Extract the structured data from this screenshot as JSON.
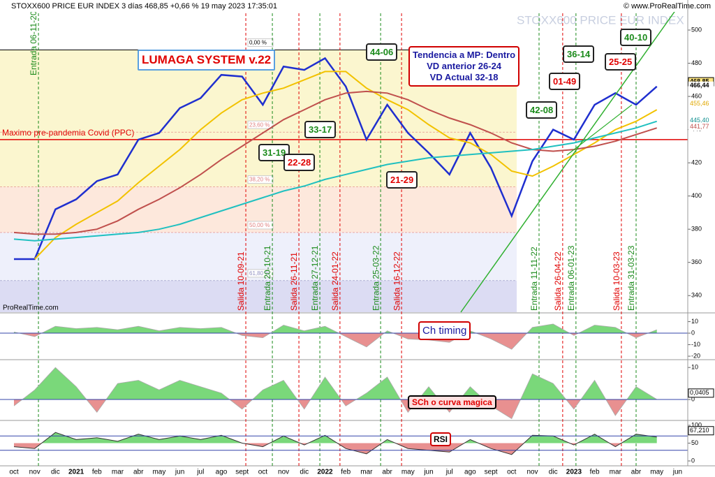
{
  "header": {
    "title": "STOXX600 PRICE EUR INDEX 3 días 468,85 +0,66 % 19 may 2023 17:35:01",
    "copyright": "© www.ProRealTime.com",
    "watermark": "STOXX600 PRICE EUR INDEX",
    "source": "ProRealTime.com"
  },
  "annotations": {
    "system": "LUMAGA SYSTEM v.22",
    "trend": [
      "Tendencia a MP: Dentro",
      "VD anterior 26-24",
      "VD Actual 32-18"
    ],
    "scores": [
      "31-19",
      "22-28",
      "33-17",
      "44-06",
      "21-29",
      "42-08",
      "01-49",
      "36-14",
      "25-25",
      "40-10"
    ]
  },
  "chart_data": [
    {
      "type": "line",
      "categories": [
        "oct",
        "nov",
        "dic",
        "2021",
        "feb",
        "mar",
        "abr",
        "may",
        "jun",
        "jul",
        "ago",
        "sept",
        "oct",
        "nov",
        "dic",
        "2022",
        "feb",
        "mar",
        "abr",
        "may",
        "jun",
        "jul",
        "ago",
        "sept",
        "oct",
        "nov",
        "dic",
        "2023",
        "feb",
        "mar",
        "abr",
        "may",
        "jun"
      ],
      "series": [
        {
          "color": "#1f2fcf",
          "values": [
            362,
            362,
            392,
            398,
            409,
            413,
            434,
            438,
            453,
            459,
            473,
            472,
            455,
            478,
            476,
            483,
            466,
            434,
            455,
            438,
            426,
            413,
            438,
            417,
            388,
            421,
            440,
            434,
            455,
            462,
            455,
            466,
            null
          ]
        },
        {
          "color": "#f2c200",
          "values": [
            null,
            362,
            375,
            383,
            390,
            397,
            408,
            418,
            428,
            440,
            450,
            458,
            462,
            465,
            470,
            475,
            475,
            465,
            458,
            452,
            443,
            435,
            432,
            425,
            415,
            412,
            418,
            425,
            432,
            440,
            445,
            452,
            null
          ]
        },
        {
          "color": "#c0504d",
          "values": [
            378,
            377,
            377,
            378,
            380,
            385,
            392,
            398,
            405,
            413,
            422,
            430,
            438,
            446,
            452,
            458,
            462,
            463,
            462,
            458,
            452,
            447,
            443,
            438,
            432,
            428,
            427,
            428,
            430,
            433,
            437,
            441,
            null
          ]
        },
        {
          "color": "#20c0c0",
          "values": [
            374,
            373,
            374,
            375,
            376,
            377,
            378,
            380,
            383,
            387,
            391,
            395,
            399,
            403,
            406,
            410,
            413,
            416,
            419,
            421,
            423,
            424,
            425,
            426,
            427,
            428,
            430,
            432,
            435,
            438,
            441,
            445,
            null
          ]
        }
      ],
      "ylim": [
        330,
        516
      ],
      "yticks": [
        340,
        360,
        380,
        400,
        420,
        440,
        460,
        480,
        500
      ],
      "levels": [
        {
          "label": "Maximo pre-pandemia Covid (PPC)",
          "value": 434,
          "color": "#e00000"
        },
        {
          "label": "0,00 %",
          "value": 488,
          "color": "#000000"
        },
        {
          "label": "23,60 %",
          "value": 438.5,
          "color": "#e08080"
        },
        {
          "label": "38,20 %",
          "value": 405.5,
          "color": "#e08080"
        },
        {
          "label": "50,00 %",
          "value": 378,
          "color": "#e08080"
        },
        {
          "label": "61,80 %",
          "value": 349,
          "color": "#9090c0"
        }
      ],
      "price_labels": [
        {
          "value": 468.85,
          "label": "468,85",
          "color": "#000000"
        },
        {
          "value": 466.44,
          "label": "466,44",
          "color": "#000000"
        },
        {
          "value": 455.46,
          "label": "455,46",
          "color": "#e0a800"
        },
        {
          "value": 445.4,
          "label": "445,40",
          "color": "#109090"
        },
        {
          "value": 441.77,
          "label": "441,77",
          "color": "#c0504d"
        }
      ],
      "signals": [
        {
          "label": "Entrada 06-11-20",
          "x": 1.18,
          "color": "#1a8a1a"
        },
        {
          "label": "Salida 10-09-21",
          "x": 11.18,
          "color": "#e00000"
        },
        {
          "label": "Entrada 20-10-21",
          "x": 12.46,
          "color": "#1a8a1a"
        },
        {
          "label": "Salida 26-11-21",
          "x": 13.74,
          "color": "#e00000"
        },
        {
          "label": "Entrada 27-12-21",
          "x": 14.75,
          "color": "#1a8a1a"
        },
        {
          "label": "Salida 24-01-22",
          "x": 15.72,
          "color": "#e00000"
        },
        {
          "label": "Entrada 25-03-22",
          "x": 17.68,
          "color": "#1a8a1a"
        },
        {
          "label": "Salida 16-12-22",
          "x": 18.69,
          "color": "#e00000"
        },
        {
          "label": "Entrada 11-11-22",
          "x": 25.32,
          "color": "#1a8a1a"
        },
        {
          "label": "Salida 26-04-22",
          "x": 26.46,
          "color": "#e00000"
        },
        {
          "label": "Entrada 06-01-23",
          "x": 27.1,
          "color": "#1a8a1a"
        },
        {
          "label": "Salida 10-03-23",
          "x": 29.29,
          "color": "#e00000"
        },
        {
          "label": "Entrada 31-03-23",
          "x": 30.0,
          "color": "#1a8a1a"
        }
      ]
    },
    {
      "type": "area",
      "title": "Ch timing",
      "values": [
        1,
        -3,
        6,
        4,
        5,
        3,
        6,
        2,
        5,
        4,
        5,
        -2,
        -4,
        7,
        2,
        6,
        -3,
        -12,
        2,
        -5,
        -6,
        -8,
        2,
        -5,
        -14,
        5,
        8,
        -2,
        7,
        5,
        -4,
        3,
        null
      ],
      "ylim": [
        -21.8,
        16.4
      ],
      "yticks": [
        10,
        0,
        -10,
        -20
      ],
      "up": "#7ad87a",
      "down": "#e89090"
    },
    {
      "type": "area",
      "title": "SCh o curva magica",
      "values": [
        -2,
        3,
        10,
        4,
        -4,
        5,
        6,
        3,
        6,
        4,
        2,
        -3,
        3,
        6,
        -3,
        7,
        -2,
        2,
        7,
        -4,
        4,
        -4,
        4,
        -2,
        -6,
        8,
        5,
        -3,
        6,
        -5,
        4,
        0.0405,
        null
      ],
      "ylim": [
        -6.1,
        12
      ],
      "yticks": [
        10,
        0
      ],
      "last_label": {
        "value": 0.0405,
        "label": "0,0405"
      },
      "up": "#7ad87a",
      "down": "#e89090"
    },
    {
      "type": "line",
      "title": "RSI",
      "values": [
        40,
        35,
        80,
        60,
        65,
        55,
        75,
        60,
        70,
        60,
        72,
        50,
        40,
        70,
        45,
        72,
        35,
        20,
        60,
        35,
        30,
        25,
        60,
        35,
        18,
        72,
        70,
        45,
        75,
        40,
        75,
        67.21,
        null
      ],
      "ylim": [
        -9.8,
        109.8
      ],
      "yticks": [
        100,
        50,
        0
      ],
      "levels": [
        70,
        30
      ],
      "last_label": {
        "value": 67.21,
        "label": "67,210"
      },
      "up": "#7ad87a",
      "down": "#e89090"
    }
  ]
}
